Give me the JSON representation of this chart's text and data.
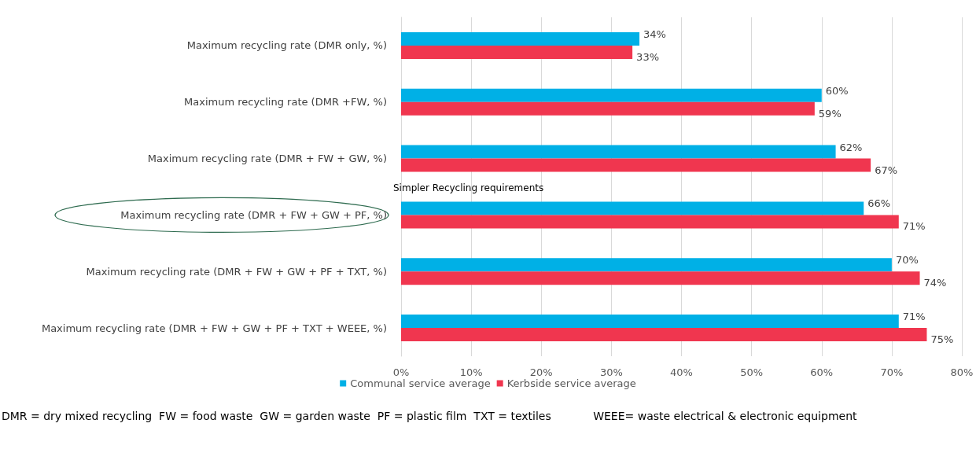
{
  "chart_data": {
    "type": "bar",
    "orientation": "horizontal",
    "categories": [
      "Maximum recycling rate (DMR only, %)",
      "Maximum recycling rate (DMR +FW, %)",
      "Maximum recycling rate (DMR + FW + GW, %)",
      "Maximum recycling rate (DMR + FW + GW + PF, %)",
      "Maximum recycling rate (DMR + FW + GW + PF + TXT, %)",
      "Maximum recycling rate (DMR + FW + GW + PF + TXT + WEEE, %)"
    ],
    "series": [
      {
        "name": "Communal service average",
        "color": "#00b0e6",
        "values": [
          34,
          60,
          62,
          66,
          70,
          71
        ],
        "value_labels": [
          "34%",
          "60%",
          "62%",
          "66%",
          "70%",
          "71%"
        ]
      },
      {
        "name": "Kerbside service average",
        "color": "#f0364f",
        "values": [
          33,
          59,
          67,
          71,
          74,
          75
        ],
        "value_labels": [
          "33%",
          "59%",
          "67%",
          "71%",
          "74%",
          "75%"
        ]
      }
    ],
    "xlim": [
      0,
      80
    ],
    "xticks": [
      {
        "value": 0,
        "label": "0%"
      },
      {
        "value": 10,
        "label": "10%"
      },
      {
        "value": 20,
        "label": "20%"
      },
      {
        "value": 30,
        "label": "30%"
      },
      {
        "value": 40,
        "label": "40%"
      },
      {
        "value": 50,
        "label": "50%"
      },
      {
        "value": 60,
        "label": "60%"
      },
      {
        "value": 70,
        "label": "70%"
      },
      {
        "value": 80,
        "label": "80%"
      }
    ],
    "grid": "x",
    "legend": "bottom",
    "annotations": [
      {
        "text": "Simpler Recycling requirements",
        "y": "Maximum recycling rate (DMR + FW + GW + PF, %)"
      },
      "DMR = dry mixed recycling  FW = food waste  GW = garden waste  PF = plastic film  TXT = textiles            WEEE= waste electrical & electronic equipment"
    ]
  }
}
